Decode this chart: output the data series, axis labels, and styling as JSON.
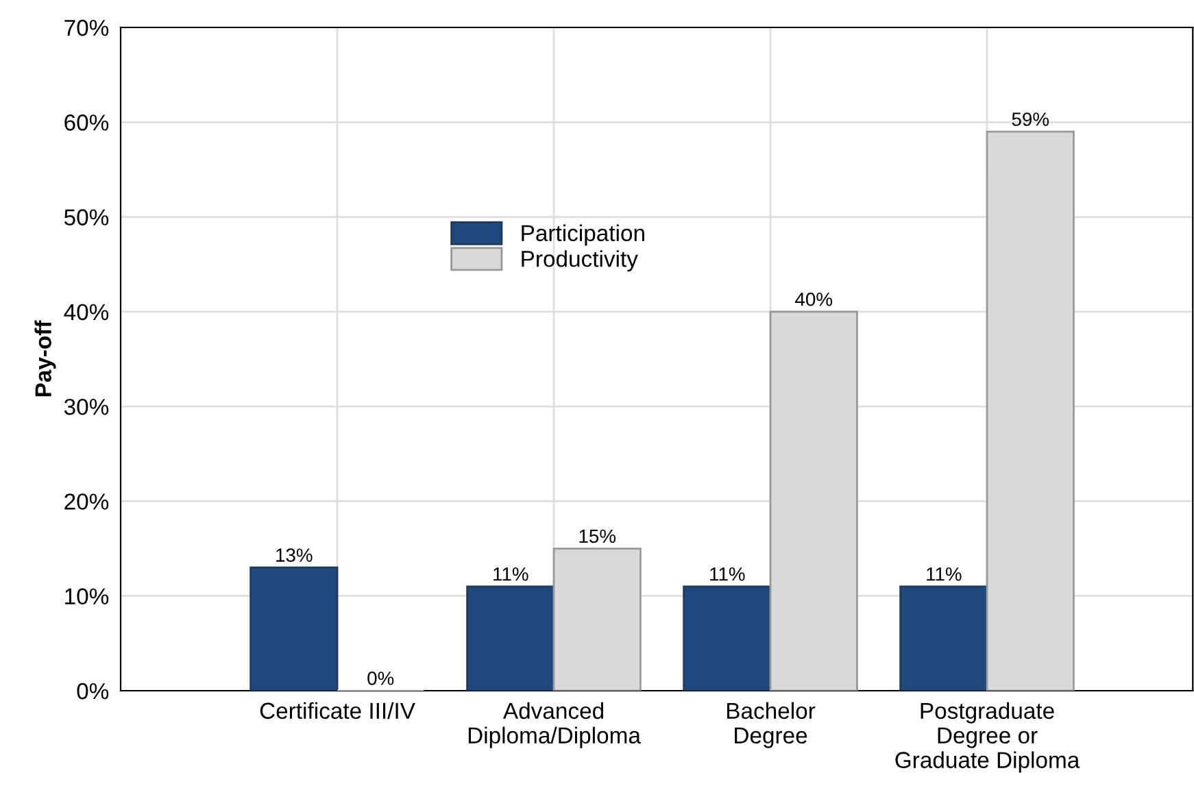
{
  "chart_data": {
    "type": "bar",
    "ylabel": "Pay-off",
    "categories": [
      "Certificate III/IV",
      "Advanced\nDiploma/Diploma",
      "Bachelor\nDegree",
      "Postgraduate\nDegree or\nGraduate Diploma"
    ],
    "series": [
      {
        "name": "Participation",
        "color": "#1f497d",
        "values": [
          13,
          11,
          11,
          11
        ],
        "value_labels": [
          "13%",
          "11%",
          "11%",
          "11%"
        ]
      },
      {
        "name": "Productivity",
        "color": "#d9d9d9",
        "values": [
          0,
          15,
          40,
          59
        ],
        "value_labels": [
          "0%",
          "15%",
          "40%",
          "59%"
        ]
      }
    ],
    "ylim": [
      0,
      70
    ],
    "yticks": [
      {
        "value": 0,
        "label": "0%"
      },
      {
        "value": 10,
        "label": "10%"
      },
      {
        "value": 20,
        "label": "20%"
      },
      {
        "value": 30,
        "label": "30%"
      },
      {
        "value": 40,
        "label": "40%"
      },
      {
        "value": 50,
        "label": "50%"
      },
      {
        "value": 60,
        "label": "60%"
      },
      {
        "value": 70,
        "label": "70%"
      }
    ],
    "grid": true,
    "legend": "top"
  }
}
